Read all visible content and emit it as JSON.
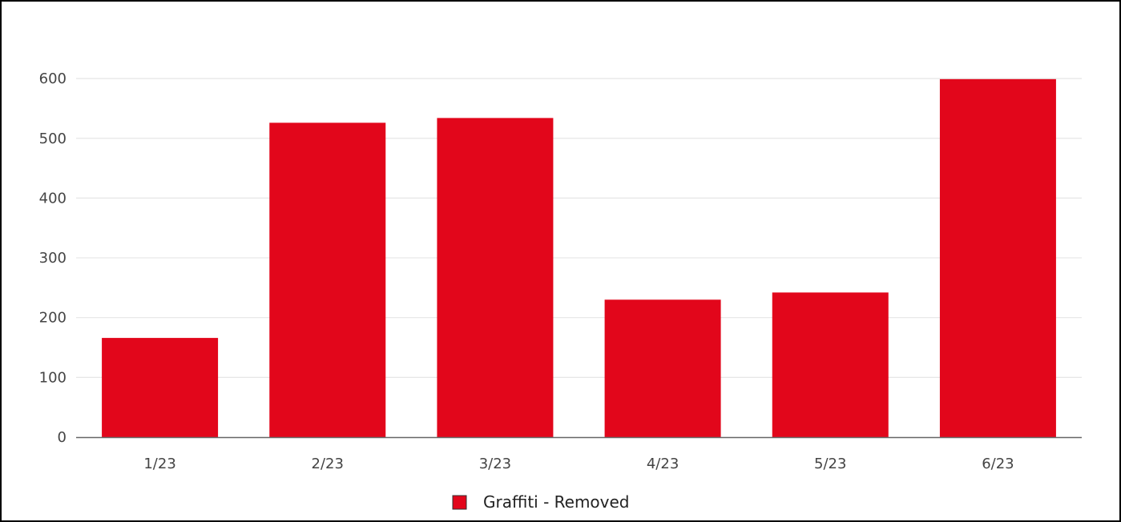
{
  "chart_data": {
    "type": "bar",
    "categories": [
      "1/23",
      "2/23",
      "3/23",
      "4/23",
      "5/23",
      "6/23"
    ],
    "series": [
      {
        "name": "Graffiti - Removed",
        "color": "#e2061b",
        "values": [
          166,
          526,
          534,
          230,
          242,
          599
        ]
      }
    ],
    "ylim": [
      0,
      640
    ],
    "yticks": [
      0,
      100,
      200,
      300,
      400,
      500,
      600
    ],
    "ytick_labels": [
      "0",
      "100",
      "200",
      "300",
      "400",
      "500",
      "600"
    ],
    "grid": true,
    "grid_color": "#e6e6e6",
    "axis_color": "#666666",
    "legend_position": "bottom-center",
    "title": "",
    "xlabel": "",
    "ylabel": ""
  }
}
